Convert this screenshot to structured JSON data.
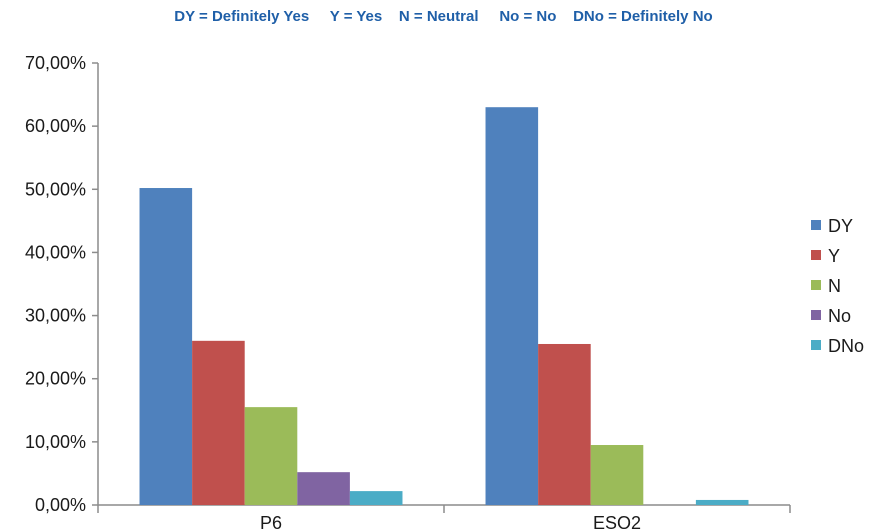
{
  "header": {
    "definitions": "DY = Definitely Yes     Y = Yes    N = Neutral     No = No    DNo = Definitely No"
  },
  "chart_data": {
    "type": "bar",
    "categories": [
      "P6",
      "ESO2"
    ],
    "series": [
      {
        "name": "DY",
        "color": "#4f81bd",
        "values": [
          50.2,
          63.0
        ]
      },
      {
        "name": "Y",
        "color": "#c0504d",
        "values": [
          26.0,
          25.5
        ]
      },
      {
        "name": "N",
        "color": "#9bbb59",
        "values": [
          15.5,
          9.5
        ]
      },
      {
        "name": "No",
        "color": "#8064a2",
        "values": [
          5.2,
          0.0
        ]
      },
      {
        "name": "DNo",
        "color": "#4bacc6",
        "values": [
          2.2,
          0.8
        ]
      }
    ],
    "ylim": [
      0,
      70
    ],
    "yticks": [
      "0,00%",
      "10,00%",
      "20,00%",
      "30,00%",
      "40,00%",
      "50,00%",
      "60,00%",
      "70,00%"
    ],
    "legend_position": "right",
    "grid": false
  }
}
